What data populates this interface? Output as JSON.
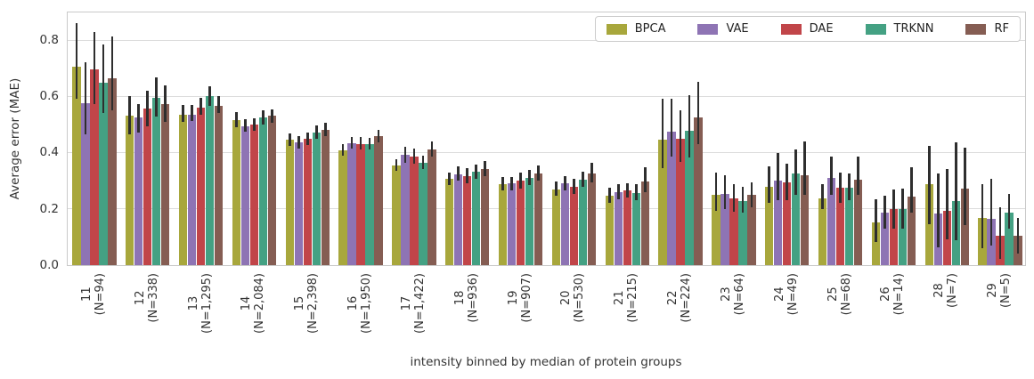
{
  "figure": {
    "background": "#ffffff"
  },
  "chart_data": {
    "type": "bar",
    "title": "",
    "xlabel": "intensity binned by median of protein groups",
    "ylabel": "Average error (MAE)",
    "ylim": [
      0,
      0.903
    ],
    "yticks": [
      0,
      0.2,
      0.4,
      0.6,
      0.8
    ],
    "ytick_labels": [
      "0.0",
      "0.2",
      "0.4",
      "0.6",
      "0.8"
    ],
    "grid": "horizontal",
    "legend": {
      "position": "upper right",
      "orientation": "horizontal"
    },
    "error_bars": true,
    "errorbar_color": "#2e2e2e",
    "categories": [
      {
        "bin": "11",
        "n": "(N=94)"
      },
      {
        "bin": "12",
        "n": "(N=338)"
      },
      {
        "bin": "13",
        "n": "(N=1,295)"
      },
      {
        "bin": "14",
        "n": "(N=2,084)"
      },
      {
        "bin": "15",
        "n": "(N=2,398)"
      },
      {
        "bin": "16",
        "n": "(N=1,950)"
      },
      {
        "bin": "17",
        "n": "(N=1,422)"
      },
      {
        "bin": "18",
        "n": "(N=936)"
      },
      {
        "bin": "19",
        "n": "(N=907)"
      },
      {
        "bin": "20",
        "n": "(N=530)"
      },
      {
        "bin": "21",
        "n": "(N=215)"
      },
      {
        "bin": "22",
        "n": "(N=224)"
      },
      {
        "bin": "23",
        "n": "(N=64)"
      },
      {
        "bin": "24",
        "n": "(N=49)"
      },
      {
        "bin": "25",
        "n": "(N=68)"
      },
      {
        "bin": "26",
        "n": "(N=14)"
      },
      {
        "bin": "28",
        "n": "(N=7)"
      },
      {
        "bin": "29",
        "n": "(N=5)"
      }
    ],
    "series": [
      {
        "name": "BPCA",
        "color": "#a8a73c",
        "values": [
          0.705,
          0.53,
          0.535,
          0.515,
          0.445,
          0.408,
          0.355,
          0.305,
          0.288,
          0.27,
          0.247,
          0.446,
          0.25,
          0.278,
          0.237,
          0.152,
          0.286,
          0.168
        ],
        "err_low": [
          0.59,
          0.465,
          0.508,
          0.49,
          0.423,
          0.388,
          0.334,
          0.283,
          0.264,
          0.245,
          0.221,
          0.345,
          0.193,
          0.221,
          0.199,
          0.083,
          0.144,
          0.061
        ],
        "err_high": [
          0.86,
          0.6,
          0.568,
          0.543,
          0.468,
          0.43,
          0.376,
          0.329,
          0.313,
          0.298,
          0.276,
          0.59,
          0.329,
          0.35,
          0.288,
          0.234,
          0.423,
          0.286
        ]
      },
      {
        "name": "VAE",
        "color": "#8e74b4",
        "values": [
          0.575,
          0.524,
          0.535,
          0.494,
          0.436,
          0.434,
          0.39,
          0.323,
          0.289,
          0.291,
          0.259,
          0.474,
          0.253,
          0.301,
          0.308,
          0.187,
          0.182,
          0.164
        ],
        "err_low": [
          0.463,
          0.47,
          0.512,
          0.473,
          0.415,
          0.413,
          0.364,
          0.299,
          0.264,
          0.266,
          0.233,
          0.386,
          0.199,
          0.231,
          0.251,
          0.13,
          0.063,
          0.068
        ],
        "err_high": [
          0.72,
          0.572,
          0.568,
          0.518,
          0.459,
          0.455,
          0.419,
          0.349,
          0.314,
          0.316,
          0.288,
          0.589,
          0.318,
          0.398,
          0.384,
          0.245,
          0.325,
          0.306
        ]
      },
      {
        "name": "DAE",
        "color": "#c14549",
        "values": [
          0.696,
          0.555,
          0.56,
          0.498,
          0.447,
          0.431,
          0.385,
          0.316,
          0.299,
          0.279,
          0.264,
          0.449,
          0.237,
          0.295,
          0.275,
          0.2,
          0.193,
          0.105
        ],
        "err_low": [
          0.572,
          0.493,
          0.534,
          0.478,
          0.427,
          0.41,
          0.359,
          0.291,
          0.271,
          0.254,
          0.239,
          0.367,
          0.19,
          0.23,
          0.221,
          0.129,
          0.092,
          0.021
        ],
        "err_high": [
          0.828,
          0.62,
          0.594,
          0.52,
          0.472,
          0.454,
          0.414,
          0.344,
          0.33,
          0.305,
          0.29,
          0.549,
          0.288,
          0.36,
          0.33,
          0.269,
          0.341,
          0.205
        ]
      },
      {
        "name": "TRKNN",
        "color": "#44a183",
        "values": [
          0.648,
          0.595,
          0.599,
          0.524,
          0.47,
          0.431,
          0.364,
          0.331,
          0.308,
          0.303,
          0.256,
          0.478,
          0.228,
          0.326,
          0.274,
          0.2,
          0.228,
          0.187
        ],
        "err_low": [
          0.54,
          0.528,
          0.564,
          0.5,
          0.449,
          0.41,
          0.34,
          0.306,
          0.283,
          0.277,
          0.23,
          0.382,
          0.186,
          0.251,
          0.229,
          0.13,
          0.087,
          0.129
        ],
        "err_high": [
          0.784,
          0.667,
          0.634,
          0.549,
          0.496,
          0.453,
          0.39,
          0.356,
          0.338,
          0.331,
          0.286,
          0.604,
          0.279,
          0.409,
          0.324,
          0.273,
          0.436,
          0.254
        ]
      },
      {
        "name": "RF",
        "color": "#855d53",
        "values": [
          0.664,
          0.57,
          0.565,
          0.529,
          0.48,
          0.458,
          0.41,
          0.341,
          0.325,
          0.325,
          0.296,
          0.525,
          0.25,
          0.319,
          0.304,
          0.243,
          0.272,
          0.105
        ],
        "err_low": [
          0.549,
          0.509,
          0.539,
          0.506,
          0.459,
          0.437,
          0.384,
          0.315,
          0.299,
          0.294,
          0.259,
          0.43,
          0.204,
          0.25,
          0.251,
          0.185,
          0.143,
          0.041
        ],
        "err_high": [
          0.81,
          0.639,
          0.6,
          0.554,
          0.504,
          0.479,
          0.44,
          0.37,
          0.354,
          0.362,
          0.346,
          0.652,
          0.295,
          0.438,
          0.384,
          0.348,
          0.418,
          0.168
        ]
      }
    ]
  }
}
